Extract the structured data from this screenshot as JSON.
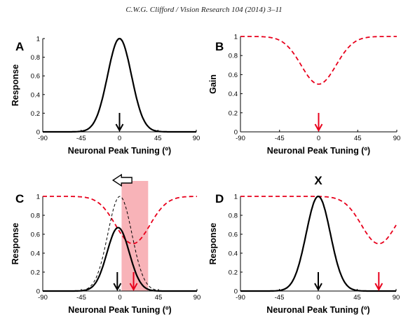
{
  "header": "C.W.G. Clifford / Vision Research 104 (2014) 3–11",
  "colors": {
    "red": "#e8001c",
    "black": "#000000",
    "shade": "#f7a6ab"
  },
  "chart_data": [
    {
      "panel": "A",
      "type": "line",
      "xlabel": "Neuronal Peak Tuning (º)",
      "ylabel": "Response",
      "xlim": [
        -90,
        90
      ],
      "ylim": [
        0,
        1
      ],
      "xticks": [
        "-90",
        "-45",
        "0",
        "45",
        "90"
      ],
      "yticks": [
        "0",
        "0.2",
        "0.4",
        "0.6",
        "0.8",
        "1"
      ],
      "series": [
        {
          "style": "solid-black",
          "shape": "gaussian",
          "center": 0,
          "peak": 1,
          "sigma": 14
        }
      ],
      "arrows": [
        {
          "x": 0,
          "color": "black"
        }
      ]
    },
    {
      "panel": "B",
      "type": "line",
      "xlabel": "Neuronal Peak Tuning (º)",
      "ylabel": "Gain",
      "xlim": [
        -90,
        90
      ],
      "ylim": [
        0,
        1
      ],
      "xticks": [
        "-90",
        "-45",
        "0",
        "45",
        "90"
      ],
      "yticks": [
        "0",
        "0.2",
        "0.4",
        "0.6",
        "0.8",
        "1"
      ],
      "series": [
        {
          "style": "dashed-red",
          "shape": "inverted-gaussian",
          "center": 0,
          "baseline": 1,
          "min": 0.5,
          "sigma": 20
        }
      ],
      "arrows": [
        {
          "x": 0,
          "color": "red"
        }
      ]
    },
    {
      "panel": "C",
      "type": "line",
      "xlabel": "Neuronal Peak Tuning (º)",
      "ylabel": "Response",
      "xlim": [
        -90,
        90
      ],
      "ylim": [
        0,
        1
      ],
      "xticks": [
        "-90",
        "-45",
        "0",
        "45",
        "90"
      ],
      "yticks": [
        "0",
        "0.2",
        "0.4",
        "0.6",
        "0.8",
        "1"
      ],
      "shaded_region": [
        2,
        33
      ],
      "series": [
        {
          "style": "dashed-red",
          "shape": "inverted-gaussian",
          "center": 15,
          "baseline": 1,
          "min": 0.5,
          "sigma": 20
        },
        {
          "style": "thin-dashed-black",
          "shape": "gaussian",
          "center": 0,
          "peak": 1,
          "sigma": 14
        },
        {
          "style": "solid-black",
          "shape": "gaussian",
          "center": -2,
          "peak": 0.67,
          "sigma": 13
        }
      ],
      "arrows": [
        {
          "x": -3,
          "color": "black"
        },
        {
          "x": 16,
          "color": "red"
        }
      ],
      "shift_arrow": "left"
    },
    {
      "panel": "D",
      "title": "X",
      "type": "line",
      "xlabel": "Neuronal Peak Tuning (º)",
      "ylabel": "Response",
      "xlim": [
        -90,
        90
      ],
      "ylim": [
        0,
        1
      ],
      "xticks": [
        "-90",
        "-45",
        "0",
        "45",
        "90"
      ],
      "yticks": [
        "0",
        "0.2",
        "0.4",
        "0.6",
        "0.8",
        "1"
      ],
      "series": [
        {
          "style": "dashed-red",
          "shape": "inverted-gaussian",
          "center": 70,
          "baseline": 1,
          "min": 0.5,
          "sigma": 20
        },
        {
          "style": "solid-black",
          "shape": "gaussian",
          "center": 0,
          "peak": 1,
          "sigma": 14
        }
      ],
      "arrows": [
        {
          "x": 0,
          "color": "black"
        },
        {
          "x": 70,
          "color": "red"
        }
      ]
    }
  ]
}
